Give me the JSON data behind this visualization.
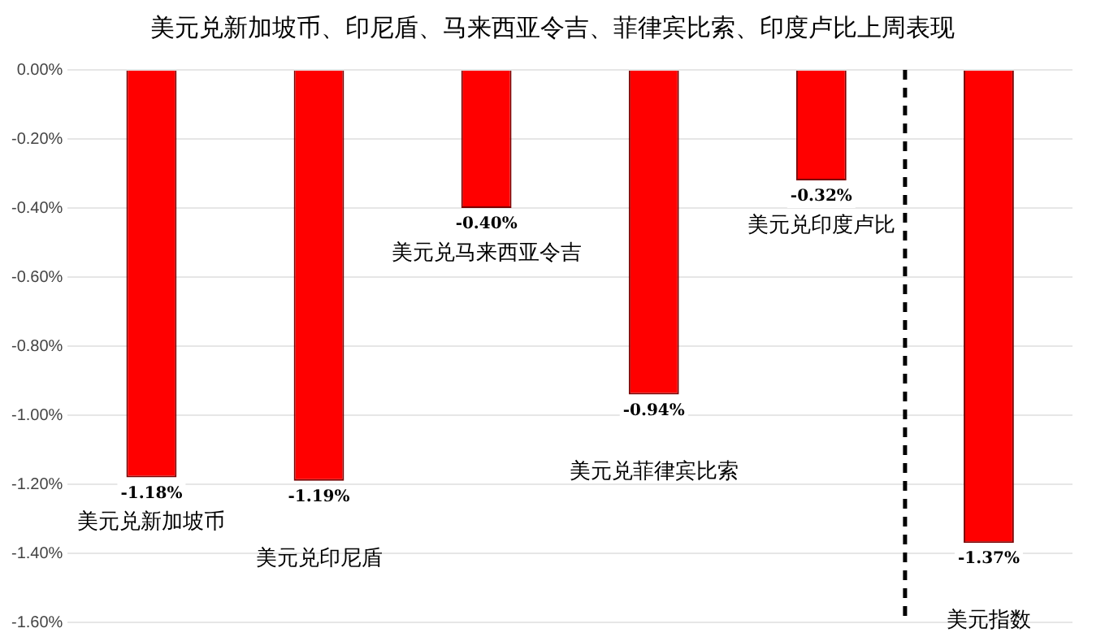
{
  "chart_data": {
    "type": "bar",
    "title": "美元兑新加坡币、印尼盾、马来西亚令吉、菲律宾比索、印度卢比上周表现",
    "categories": [
      "美元兑新加坡币",
      "美元兑印尼盾",
      "美元兑马来西亚令吉",
      "美元兑菲律宾比索",
      "美元兑印度卢比",
      "美元指数"
    ],
    "series": [
      {
        "color": "#ff0000",
        "values": [
          -1.18,
          -1.19,
          -0.4,
          -0.94,
          -0.32,
          -1.37
        ],
        "value_labels": [
          "-1.18%",
          "-1.19%",
          "-0.40%",
          "-0.94%",
          "-0.32%",
          "-1.37%"
        ]
      }
    ],
    "ylim": [
      -1.6,
      0
    ],
    "yticks": [
      {
        "value": 0,
        "label": "0.00%"
      },
      {
        "value": -0.2,
        "label": "-0.20%"
      },
      {
        "value": -0.4,
        "label": "-0.40%"
      },
      {
        "value": -0.6,
        "label": "-0.60%"
      },
      {
        "value": -0.8,
        "label": "-0.80%"
      },
      {
        "value": -1.0,
        "label": "-1.00%"
      },
      {
        "value": -1.2,
        "label": "-1.20%"
      },
      {
        "value": -1.4,
        "label": "-1.40%"
      },
      {
        "value": -1.6,
        "label": "-1.60%"
      }
    ],
    "ref_lines": [
      {
        "axis": "x",
        "value": "美元指数",
        "color": "#000000",
        "line_style": "dashed"
      }
    ],
    "tick_labels": "y",
    "grid": "y",
    "legend": false
  }
}
